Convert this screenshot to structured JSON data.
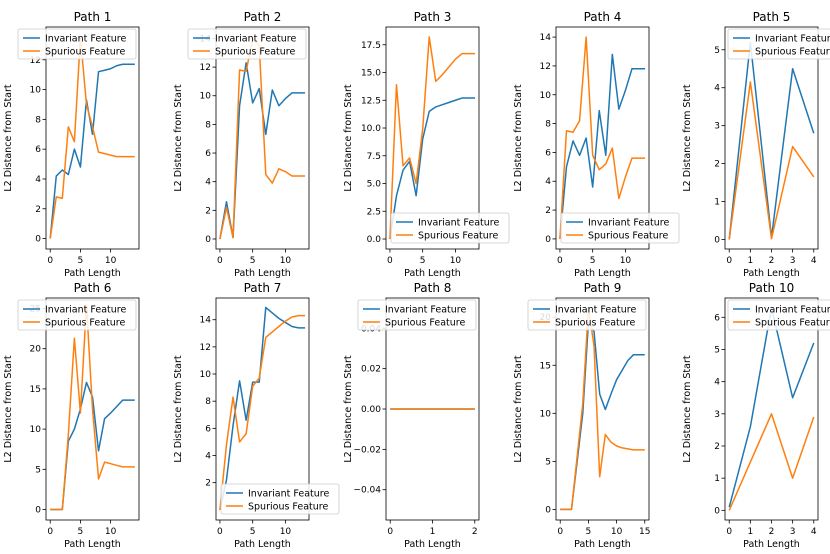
{
  "figure": {
    "shared_xlabel": "Path Length",
    "shared_ylabel": "L2 Distance from Start",
    "series_names": [
      "Invariant Feature",
      "Spurious Feature"
    ],
    "series_colors": [
      "#1f77b4",
      "#ff7f0e"
    ]
  },
  "chart_data": [
    {
      "type": "line",
      "title": "Path 1",
      "xlabel": "Path Length",
      "ylabel": "L2 Distance from Start",
      "xlim": [
        -0.7,
        14.7
      ],
      "ylim": [
        -0.7,
        14.2
      ],
      "xticks": [
        0,
        5,
        10
      ],
      "yticks": [
        0,
        2,
        4,
        6,
        8,
        10,
        12
      ],
      "legend": "top-left",
      "series": [
        {
          "name": "Invariant Feature",
          "x": [
            0,
            1,
            2,
            3,
            4,
            5,
            6,
            7,
            8,
            9,
            10,
            11,
            12,
            13,
            14
          ],
          "y": [
            0,
            4.2,
            4.6,
            4.3,
            6.0,
            4.8,
            9.3,
            7.0,
            11.2,
            11.3,
            11.4,
            11.6,
            11.7,
            11.7,
            11.7
          ]
        },
        {
          "name": "Spurious Feature",
          "x": [
            0,
            1,
            2,
            3,
            4,
            5,
            6,
            7,
            8,
            9,
            10,
            11,
            12,
            13,
            14
          ],
          "y": [
            0,
            2.8,
            2.7,
            7.5,
            6.5,
            13.5,
            9.0,
            7.5,
            5.8,
            5.7,
            5.6,
            5.5,
            5.5,
            5.5,
            5.5
          ]
        }
      ]
    },
    {
      "type": "line",
      "title": "Path 2",
      "xlabel": "Path Length",
      "ylabel": "L2 Distance from Start",
      "xlim": [
        -0.6,
        13.6
      ],
      "ylim": [
        -0.7,
        14.8
      ],
      "xticks": [
        0,
        5,
        10
      ],
      "yticks": [
        0,
        2,
        4,
        6,
        8,
        10,
        12,
        14
      ],
      "legend": "top-left",
      "series": [
        {
          "name": "Invariant Feature",
          "x": [
            0,
            1,
            2,
            3,
            4,
            5,
            6,
            7,
            8,
            9,
            10,
            11,
            12,
            13
          ],
          "y": [
            0,
            2.6,
            0.1,
            9.3,
            12.3,
            9.5,
            10.5,
            7.3,
            10.4,
            9.3,
            9.8,
            10.2,
            10.2,
            10.2
          ]
        },
        {
          "name": "Spurious Feature",
          "x": [
            0,
            1,
            2,
            3,
            4,
            5,
            6,
            7,
            8,
            9,
            10,
            11,
            12,
            13
          ],
          "y": [
            0,
            2.2,
            0.1,
            11.8,
            11.7,
            14.0,
            13.5,
            4.5,
            3.9,
            4.9,
            4.7,
            4.4,
            4.4,
            4.4
          ]
        }
      ]
    },
    {
      "type": "line",
      "title": "Path 3",
      "xlabel": "Path Length",
      "ylabel": "L2 Distance from Start",
      "xlim": [
        -0.6,
        13.6
      ],
      "ylim": [
        -0.9,
        19.1
      ],
      "xticks": [
        0,
        5,
        10
      ],
      "yticks": [
        0.0,
        2.5,
        5.0,
        7.5,
        10.0,
        12.5,
        15.0,
        17.5
      ],
      "legend": "lower-right",
      "series": [
        {
          "name": "Invariant Feature",
          "x": [
            0,
            1,
            2,
            3,
            4,
            5,
            6,
            7,
            8,
            9,
            10,
            11,
            12,
            13
          ],
          "y": [
            0,
            3.9,
            6.2,
            7.0,
            3.9,
            9.0,
            11.5,
            11.9,
            12.1,
            12.3,
            12.5,
            12.7,
            12.7,
            12.7
          ]
        },
        {
          "name": "Spurious Feature",
          "x": [
            0,
            1,
            2,
            3,
            4,
            5,
            6,
            7,
            8,
            9,
            10,
            11,
            12,
            13
          ],
          "y": [
            0,
            13.9,
            6.6,
            7.3,
            5.0,
            9.9,
            18.2,
            14.2,
            14.8,
            15.5,
            16.2,
            16.7,
            16.7,
            16.7
          ]
        }
      ]
    },
    {
      "type": "line",
      "title": "Path 4",
      "xlabel": "Path Length",
      "ylabel": "L2 Distance from Start",
      "xlim": [
        -0.6,
        13.6
      ],
      "ylim": [
        -0.7,
        14.7
      ],
      "xticks": [
        0,
        5,
        10
      ],
      "yticks": [
        0,
        2,
        4,
        6,
        8,
        10,
        12,
        14
      ],
      "legend": "lower-right",
      "series": [
        {
          "name": "Invariant Feature",
          "x": [
            0,
            1,
            2,
            3,
            4,
            5,
            6,
            7,
            8,
            9,
            10,
            11,
            12,
            13
          ],
          "y": [
            0,
            5.0,
            6.8,
            5.8,
            7.0,
            3.6,
            8.9,
            5.8,
            12.8,
            9.0,
            10.3,
            11.8,
            11.8,
            11.8
          ]
        },
        {
          "name": "Spurious Feature",
          "x": [
            0,
            1,
            2,
            3,
            4,
            5,
            6,
            7,
            8,
            9,
            10,
            11,
            12,
            13
          ],
          "y": [
            0,
            7.5,
            7.4,
            8.2,
            14.0,
            5.8,
            4.8,
            5.2,
            6.3,
            2.8,
            4.3,
            5.6,
            5.6,
            5.6
          ]
        }
      ]
    },
    {
      "type": "line",
      "title": "Path 5",
      "xlabel": "Path Length",
      "ylabel": "L2 Distance from Start",
      "xlim": [
        -0.2,
        4.2
      ],
      "ylim": [
        -0.25,
        5.6
      ],
      "xticks": [
        0,
        1,
        2,
        3,
        4
      ],
      "yticks": [
        0,
        1,
        2,
        3,
        4,
        5
      ],
      "legend": "top-right",
      "series": [
        {
          "name": "Invariant Feature",
          "x": [
            0,
            1,
            2,
            3,
            4
          ],
          "y": [
            0,
            5.2,
            0.05,
            4.5,
            2.8
          ]
        },
        {
          "name": "Spurious Feature",
          "x": [
            0,
            1,
            2,
            3,
            4
          ],
          "y": [
            0,
            4.15,
            0.02,
            2.45,
            1.65
          ]
        }
      ]
    },
    {
      "type": "line",
      "title": "Path 6",
      "xlabel": "Path Length",
      "ylabel": "L2 Distance from Start",
      "xlim": [
        -0.7,
        14.7
      ],
      "ylim": [
        -1.3,
        26.3
      ],
      "xticks": [
        0,
        5,
        10
      ],
      "yticks": [
        0,
        5,
        10,
        15,
        20,
        25
      ],
      "legend": "top-left",
      "series": [
        {
          "name": "Invariant Feature",
          "x": [
            0,
            1,
            2,
            3,
            4,
            5,
            6,
            7,
            8,
            9,
            10,
            11,
            12,
            13,
            14
          ],
          "y": [
            0,
            0,
            0,
            8.5,
            10.0,
            12.5,
            15.8,
            14.0,
            7.3,
            11.3,
            12.0,
            12.8,
            13.6,
            13.6,
            13.6
          ]
        },
        {
          "name": "Spurious Feature",
          "x": [
            0,
            1,
            2,
            3,
            4,
            5,
            6,
            7,
            8,
            9,
            10,
            11,
            12,
            13,
            14
          ],
          "y": [
            0,
            0,
            0,
            9.3,
            21.3,
            12.0,
            25.5,
            12.5,
            3.8,
            5.9,
            5.7,
            5.5,
            5.3,
            5.3,
            5.3
          ]
        }
      ]
    },
    {
      "type": "line",
      "title": "Path 7",
      "xlabel": "Path Length",
      "ylabel": "L2 Distance from Start",
      "xlim": [
        -0.6,
        13.6
      ],
      "ylim": [
        -0.75,
        15.6
      ],
      "xticks": [
        0,
        5,
        10
      ],
      "yticks": [
        2,
        4,
        6,
        8,
        10,
        12,
        14
      ],
      "legend": "lower-right",
      "series": [
        {
          "name": "Invariant Feature",
          "x": [
            0,
            1,
            2,
            3,
            4,
            5,
            6,
            7,
            8,
            9,
            10,
            11,
            12,
            13
          ],
          "y": [
            0,
            2.2,
            6.2,
            9.5,
            6.6,
            9.4,
            9.4,
            14.9,
            14.5,
            14.1,
            13.8,
            13.5,
            13.4,
            13.4
          ]
        },
        {
          "name": "Spurious Feature",
          "x": [
            0,
            1,
            2,
            3,
            4,
            5,
            6,
            7,
            8,
            9,
            10,
            11,
            12,
            13
          ],
          "y": [
            0,
            4.8,
            8.3,
            5.0,
            5.6,
            9.1,
            9.7,
            12.7,
            13.1,
            13.5,
            13.9,
            14.2,
            14.3,
            14.3
          ]
        }
      ]
    },
    {
      "type": "line",
      "title": "Path 8",
      "xlabel": "Path Length",
      "ylabel": "L2 Distance from Start",
      "xlim": [
        -0.1,
        2.1
      ],
      "ylim": [
        -0.055,
        0.055
      ],
      "xticks": [
        0,
        1,
        2
      ],
      "yticks": [
        -0.04,
        -0.02,
        0.0,
        0.02,
        0.04
      ],
      "ytick_labels": [
        "−0.04",
        "−0.02",
        "0.00",
        "0.02",
        "0.04"
      ],
      "legend": "top-left",
      "series": [
        {
          "name": "Invariant Feature",
          "x": [
            0,
            1,
            2
          ],
          "y": [
            0,
            0,
            0
          ]
        },
        {
          "name": "Spurious Feature",
          "x": [
            0,
            1,
            2
          ],
          "y": [
            0,
            0,
            0
          ]
        }
      ]
    },
    {
      "type": "line",
      "title": "Path 9",
      "xlabel": "Path Length",
      "ylabel": "L2 Distance from Start",
      "xlim": [
        -0.75,
        15.75
      ],
      "ylim": [
        -1.1,
        22.0
      ],
      "xticks": [
        0,
        5,
        10,
        15
      ],
      "yticks": [
        0,
        5,
        10,
        15,
        20
      ],
      "legend": "top-left",
      "series": [
        {
          "name": "Invariant Feature",
          "x": [
            0,
            1,
            2,
            3,
            4,
            5,
            6,
            7,
            8,
            9,
            10,
            11,
            12,
            13,
            14,
            15
          ],
          "y": [
            0,
            0,
            0,
            5.0,
            10.0,
            19.5,
            18.5,
            12.0,
            10.4,
            12.0,
            13.5,
            14.5,
            15.5,
            16.1,
            16.1,
            16.1
          ]
        },
        {
          "name": "Spurious Feature",
          "x": [
            0,
            1,
            2,
            3,
            4,
            5,
            6,
            7,
            8,
            9,
            10,
            11,
            12,
            13,
            14,
            15
          ],
          "y": [
            0,
            0,
            0,
            5.5,
            11.0,
            21.0,
            17.0,
            3.4,
            7.8,
            7.0,
            6.6,
            6.4,
            6.3,
            6.2,
            6.2,
            6.2
          ]
        }
      ]
    },
    {
      "type": "line",
      "title": "Path 10",
      "xlabel": "Path Length",
      "ylabel": "L2 Distance from Start",
      "xlim": [
        -0.2,
        4.2
      ],
      "ylim": [
        -0.3,
        6.6
      ],
      "xticks": [
        0,
        1,
        2,
        3,
        4
      ],
      "yticks": [
        0,
        1,
        2,
        3,
        4,
        5,
        6
      ],
      "legend": "top-right",
      "series": [
        {
          "name": "Invariant Feature",
          "x": [
            0,
            1,
            2,
            3,
            4
          ],
          "y": [
            0.1,
            2.6,
            6.3,
            3.5,
            5.2
          ]
        },
        {
          "name": "Spurious Feature",
          "x": [
            0,
            1,
            2,
            3,
            4
          ],
          "y": [
            0,
            1.5,
            3.0,
            1.0,
            2.9
          ]
        }
      ]
    }
  ]
}
